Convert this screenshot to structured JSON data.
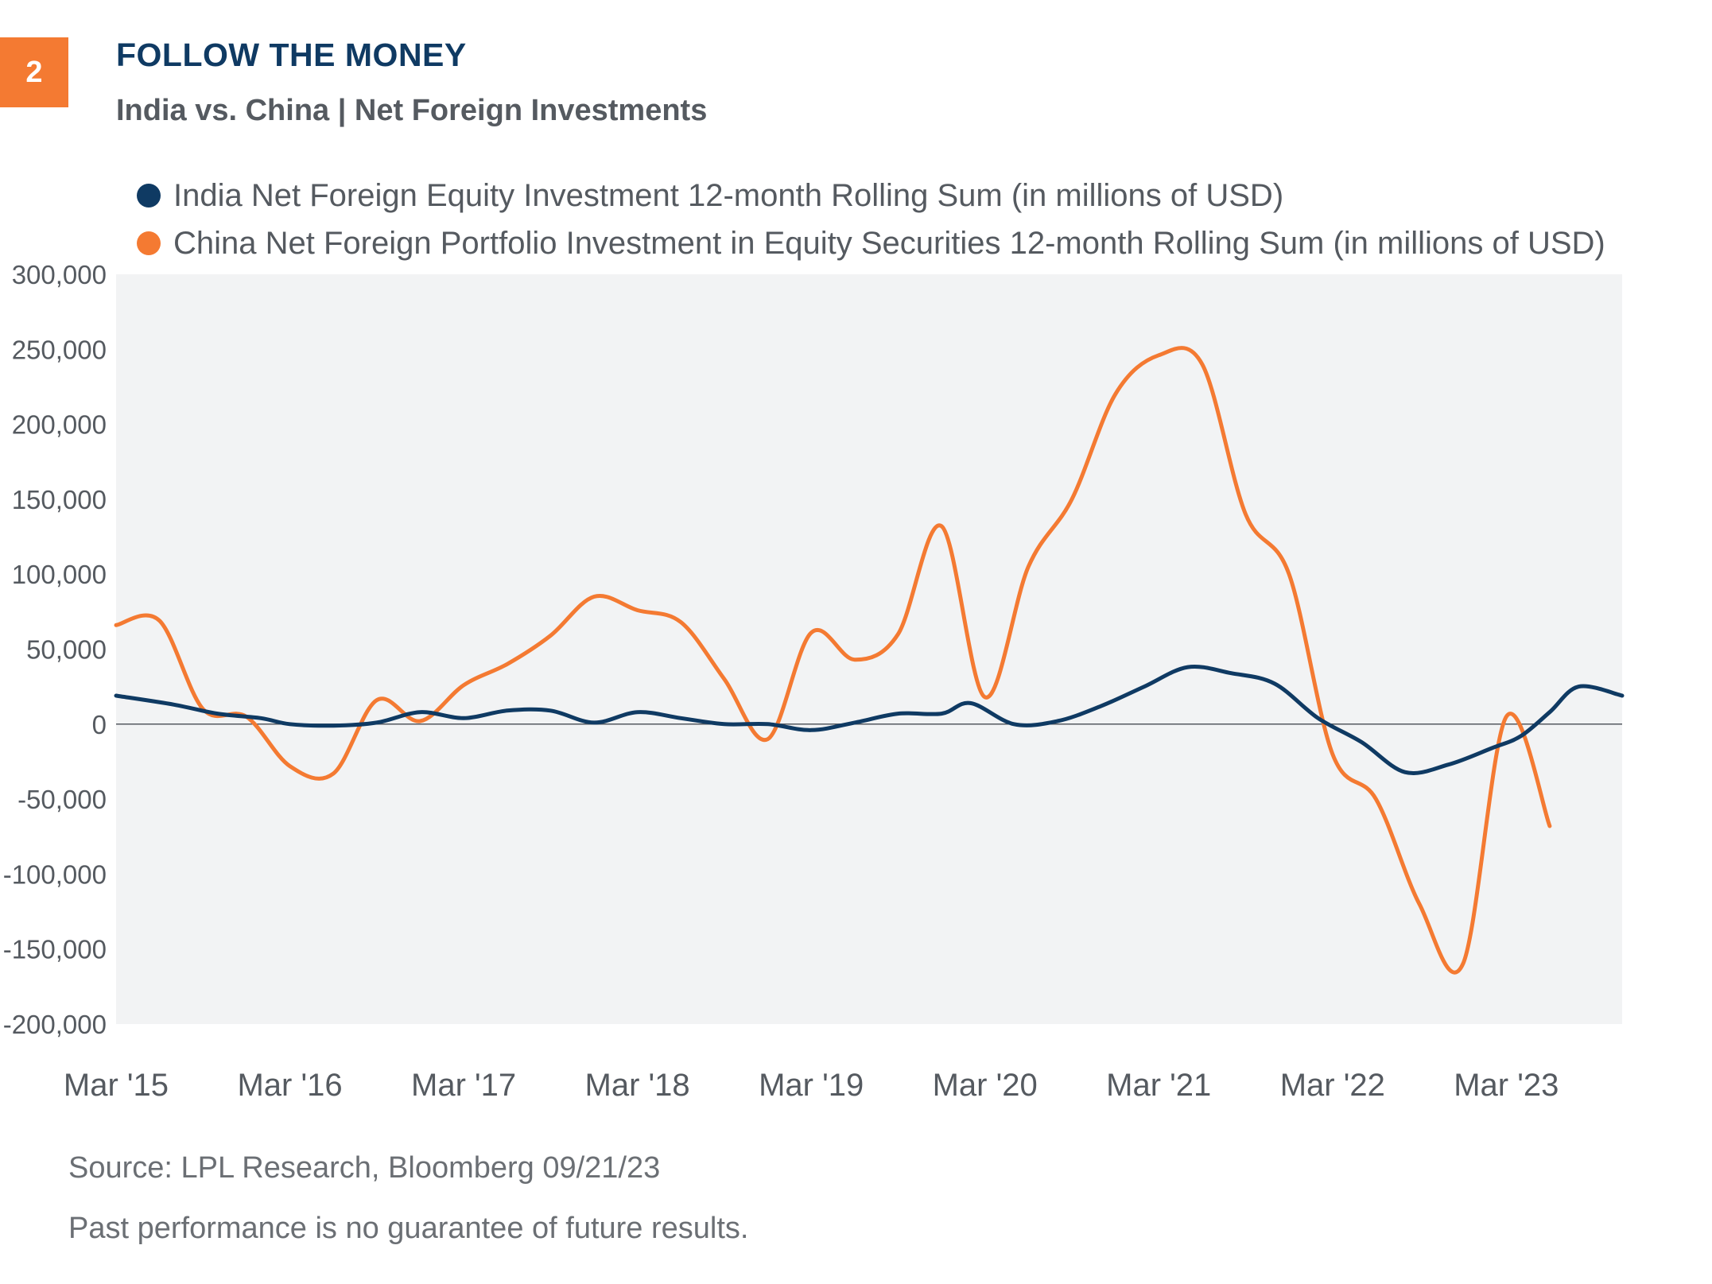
{
  "badge": "2",
  "header": {
    "title": "FOLLOW THE MONEY",
    "subtitle": "India vs. China | Net Foreign Investments"
  },
  "colors": {
    "badge": "#f47a32",
    "title": "#0f3a63",
    "india": "#0f3a63",
    "china": "#f47a32",
    "plot_bg": "#f2f3f4"
  },
  "footer": {
    "source": "Source: LPL Research, Bloomberg 09/21/23",
    "disclaimer": "Past performance is no guarantee of future results."
  },
  "chart_data": {
    "type": "line",
    "title": "FOLLOW THE MONEY",
    "subtitle": "India vs. China | Net Foreign Investments",
    "xlabel": "",
    "ylabel": "",
    "ylim": [
      -200000,
      300000
    ],
    "xlim": [
      "2015-03",
      "2023-11"
    ],
    "yticks": [
      300000,
      250000,
      200000,
      150000,
      100000,
      50000,
      0,
      -50000,
      -100000,
      -150000,
      -200000
    ],
    "ytick_labels": [
      "300,000",
      "250,000",
      "200,000",
      "150,000",
      "100,000",
      "50,000",
      "0",
      "-50,000",
      "-100,000",
      "-150,000",
      "-200,000"
    ],
    "xticks": [
      "2015-03",
      "2016-03",
      "2017-03",
      "2018-03",
      "2019-03",
      "2020-03",
      "2021-03",
      "2022-03",
      "2023-03"
    ],
    "xtick_labels": [
      "Mar '15",
      "Mar '16",
      "Mar '17",
      "Mar '18",
      "Mar '19",
      "Mar '20",
      "Mar '21",
      "Mar '22",
      "Mar '23"
    ],
    "grid": false,
    "zero_line": true,
    "legend_position": "top",
    "series": [
      {
        "name": "India Net Foreign Equity Investment 12-month Rolling Sum (in millions of USD)",
        "color": "#0f3a63",
        "points": [
          [
            "2015-03",
            19000
          ],
          [
            "2015-07",
            13000
          ],
          [
            "2015-10",
            7000
          ],
          [
            "2016-01",
            4000
          ],
          [
            "2016-03",
            0
          ],
          [
            "2016-06",
            -1000
          ],
          [
            "2016-09",
            1000
          ],
          [
            "2016-12",
            8000
          ],
          [
            "2017-03",
            4000
          ],
          [
            "2017-06",
            9000
          ],
          [
            "2017-09",
            9000
          ],
          [
            "2017-12",
            1000
          ],
          [
            "2018-03",
            8000
          ],
          [
            "2018-06",
            4000
          ],
          [
            "2018-09",
            0
          ],
          [
            "2018-12",
            0
          ],
          [
            "2019-03",
            -4000
          ],
          [
            "2019-06",
            1000
          ],
          [
            "2019-09",
            7000
          ],
          [
            "2019-12",
            7000
          ],
          [
            "2020-02",
            14000
          ],
          [
            "2020-05",
            0
          ],
          [
            "2020-08",
            2000
          ],
          [
            "2020-11",
            12000
          ],
          [
            "2021-02",
            25000
          ],
          [
            "2021-05",
            38000
          ],
          [
            "2021-08",
            34000
          ],
          [
            "2021-11",
            27000
          ],
          [
            "2022-02",
            4000
          ],
          [
            "2022-05",
            -12000
          ],
          [
            "2022-08",
            -32000
          ],
          [
            "2022-11",
            -27000
          ],
          [
            "2023-02",
            -16000
          ],
          [
            "2023-04",
            -8000
          ],
          [
            "2023-06",
            8000
          ],
          [
            "2023-08",
            25000
          ],
          [
            "2023-11",
            19000
          ]
        ]
      },
      {
        "name": "China Net Foreign Portfolio Investment in Equity Securities 12-month Rolling Sum (in millions of USD)",
        "color": "#f47a32",
        "points": [
          [
            "2015-03",
            66000
          ],
          [
            "2015-06",
            69000
          ],
          [
            "2015-09",
            10000
          ],
          [
            "2015-12",
            5000
          ],
          [
            "2016-03",
            -28000
          ],
          [
            "2016-06",
            -33000
          ],
          [
            "2016-09",
            16000
          ],
          [
            "2016-12",
            2000
          ],
          [
            "2017-03",
            26000
          ],
          [
            "2017-06",
            40000
          ],
          [
            "2017-09",
            59000
          ],
          [
            "2017-12",
            85000
          ],
          [
            "2018-03",
            76000
          ],
          [
            "2018-06",
            68000
          ],
          [
            "2018-09",
            30000
          ],
          [
            "2018-12",
            -10000
          ],
          [
            "2019-03",
            61000
          ],
          [
            "2019-06",
            43000
          ],
          [
            "2019-09",
            60000
          ],
          [
            "2019-12",
            132000
          ],
          [
            "2020-03",
            18000
          ],
          [
            "2020-06",
            105000
          ],
          [
            "2020-09",
            150000
          ],
          [
            "2020-12",
            220000
          ],
          [
            "2021-03",
            246000
          ],
          [
            "2021-06",
            240000
          ],
          [
            "2021-09",
            140000
          ],
          [
            "2021-12",
            100000
          ],
          [
            "2022-03",
            -20000
          ],
          [
            "2022-06",
            -50000
          ],
          [
            "2022-09",
            -120000
          ],
          [
            "2022-12",
            -160000
          ],
          [
            "2023-03",
            5000
          ],
          [
            "2023-06",
            -68000
          ]
        ]
      }
    ]
  }
}
